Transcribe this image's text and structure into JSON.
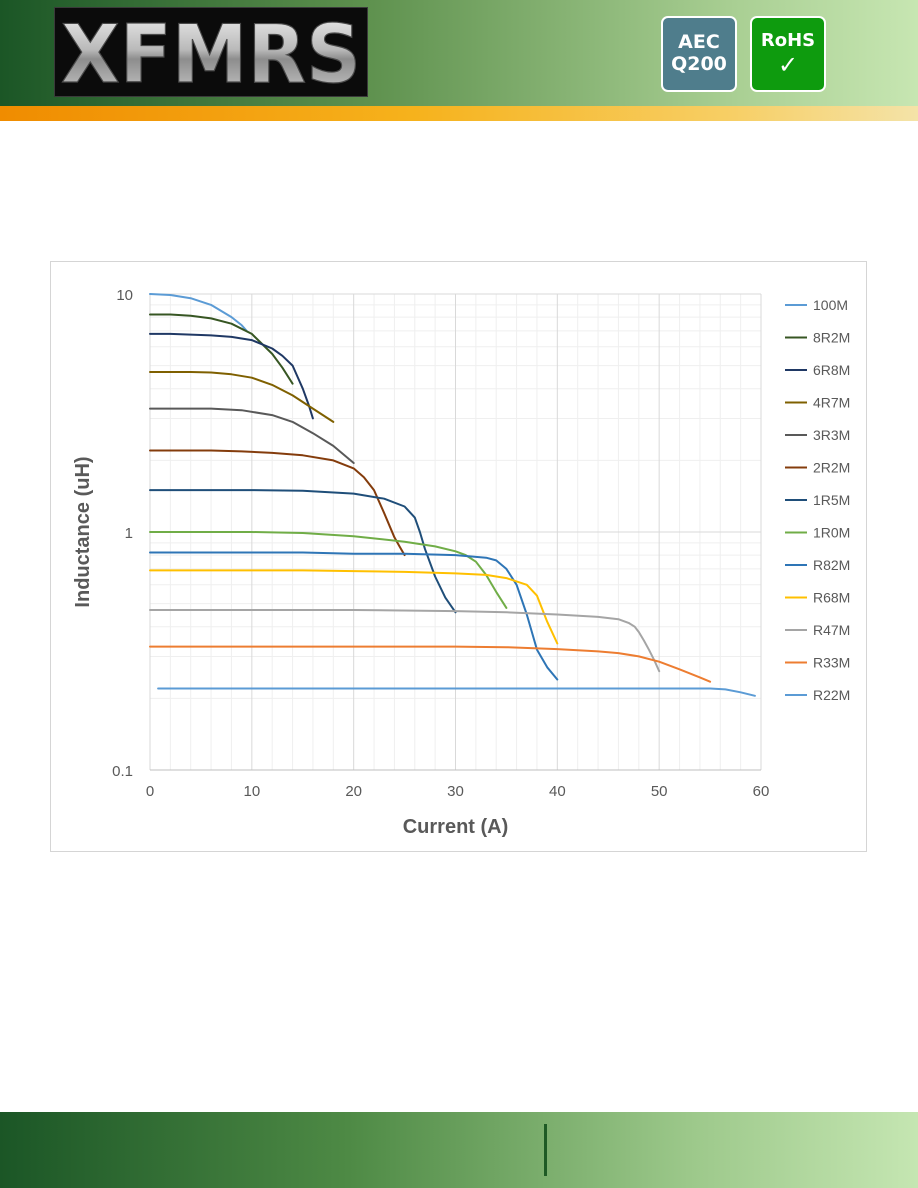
{
  "header": {
    "logo_text": "XFMRS",
    "badges": {
      "aec_line1": "AEC",
      "aec_line2": "Q200",
      "rohs_label": "RoHS",
      "rohs_check": "✓"
    }
  },
  "colors": {
    "header_dark": "#1b5626",
    "header_light": "#c7e6b2",
    "accent_orange": "#f08c00",
    "aec_badge": "#4f7d8c",
    "rohs_badge": "#0e9b0e"
  },
  "chart_data": {
    "type": "line",
    "xlabel": "Current (A)",
    "ylabel": "Inductance (uH)",
    "xlim": [
      0,
      60
    ],
    "ylim": [
      0.1,
      10
    ],
    "yscale": "log",
    "x_ticks": [
      "0",
      "10",
      "20",
      "30",
      "40",
      "50",
      "60"
    ],
    "y_ticks": [
      "0.1",
      "1",
      "10"
    ],
    "grid": true,
    "legend_position": "right",
    "series": [
      {
        "name": "100M",
        "color": "#5b9bd5",
        "x": [
          0,
          2,
          4,
          6,
          8,
          9,
          9.5
        ],
        "y": [
          10,
          9.9,
          9.6,
          9.0,
          8.0,
          7.4,
          7.0
        ]
      },
      {
        "name": "8R2M",
        "color": "#375623",
        "x": [
          0,
          2,
          4,
          6,
          8,
          10,
          12,
          13,
          14
        ],
        "y": [
          8.2,
          8.2,
          8.1,
          7.9,
          7.5,
          6.8,
          5.6,
          4.9,
          4.2
        ]
      },
      {
        "name": "6R8M",
        "color": "#1f3864",
        "x": [
          0,
          2,
          4,
          6,
          8,
          10,
          12,
          13,
          14,
          15,
          15.6,
          16
        ],
        "y": [
          6.8,
          6.8,
          6.75,
          6.7,
          6.6,
          6.4,
          5.9,
          5.5,
          5.0,
          4.0,
          3.4,
          3.0
        ]
      },
      {
        "name": "4R7M",
        "color": "#7f6000",
        "x": [
          0,
          2,
          4,
          6,
          8,
          10,
          12,
          14,
          16,
          18
        ],
        "y": [
          4.7,
          4.7,
          4.7,
          4.68,
          4.6,
          4.45,
          4.15,
          3.75,
          3.3,
          2.9
        ]
      },
      {
        "name": "3R3M",
        "color": "#595959",
        "x": [
          0,
          3,
          6,
          9,
          12,
          14,
          16,
          18,
          20
        ],
        "y": [
          3.3,
          3.3,
          3.3,
          3.25,
          3.1,
          2.9,
          2.6,
          2.3,
          1.95
        ]
      },
      {
        "name": "2R2M",
        "color": "#843c0c",
        "x": [
          0,
          3,
          6,
          9,
          12,
          15,
          18,
          20,
          21,
          22,
          23,
          24,
          24.5,
          25
        ],
        "y": [
          2.2,
          2.2,
          2.2,
          2.18,
          2.15,
          2.1,
          2.0,
          1.85,
          1.7,
          1.5,
          1.2,
          0.95,
          0.87,
          0.8
        ]
      },
      {
        "name": "1R5M",
        "color": "#1f4e79",
        "x": [
          0,
          5,
          10,
          15,
          20,
          23,
          25,
          26,
          26.5,
          27,
          28,
          29,
          30
        ],
        "y": [
          1.5,
          1.5,
          1.5,
          1.49,
          1.45,
          1.38,
          1.28,
          1.15,
          1.0,
          0.85,
          0.65,
          0.53,
          0.46
        ]
      },
      {
        "name": "1R0M",
        "color": "#70ad47",
        "x": [
          0,
          5,
          10,
          15,
          20,
          25,
          28,
          30,
          31,
          32,
          33,
          34,
          35
        ],
        "y": [
          1.0,
          1.0,
          1.0,
          0.99,
          0.96,
          0.91,
          0.87,
          0.83,
          0.8,
          0.75,
          0.66,
          0.56,
          0.48
        ]
      },
      {
        "name": "R82M",
        "color": "#2e75b6",
        "x": [
          0,
          5,
          10,
          15,
          20,
          25,
          30,
          33,
          34,
          35,
          36,
          37,
          38,
          39,
          40
        ],
        "y": [
          0.82,
          0.82,
          0.82,
          0.82,
          0.81,
          0.81,
          0.8,
          0.78,
          0.76,
          0.7,
          0.6,
          0.45,
          0.32,
          0.27,
          0.24
        ]
      },
      {
        "name": "R68M",
        "color": "#ffc000",
        "x": [
          0,
          5,
          10,
          15,
          20,
          25,
          30,
          33,
          35,
          37,
          38,
          39,
          40
        ],
        "y": [
          0.69,
          0.69,
          0.69,
          0.69,
          0.685,
          0.68,
          0.67,
          0.66,
          0.64,
          0.6,
          0.54,
          0.42,
          0.34
        ]
      },
      {
        "name": "R47M",
        "color": "#a5a5a5",
        "x": [
          0,
          10,
          20,
          30,
          35,
          40,
          44,
          46,
          47,
          47.6,
          48,
          48.5,
          49,
          49.5,
          50
        ],
        "y": [
          0.47,
          0.47,
          0.47,
          0.465,
          0.46,
          0.45,
          0.44,
          0.43,
          0.415,
          0.4,
          0.38,
          0.35,
          0.32,
          0.29,
          0.26
        ]
      },
      {
        "name": "R33M",
        "color": "#ed7d31",
        "x": [
          0,
          10,
          20,
          30,
          35,
          40,
          44,
          46,
          48,
          50,
          52,
          54,
          55
        ],
        "y": [
          0.33,
          0.33,
          0.33,
          0.33,
          0.328,
          0.322,
          0.315,
          0.31,
          0.3,
          0.285,
          0.265,
          0.245,
          0.235
        ]
      },
      {
        "name": "R22M",
        "color": "#5b9bd5",
        "x": [
          0.8,
          10,
          20,
          30,
          40,
          50,
          55,
          56.5,
          58,
          59.4
        ],
        "y": [
          0.22,
          0.22,
          0.22,
          0.22,
          0.22,
          0.22,
          0.22,
          0.218,
          0.212,
          0.205
        ]
      }
    ]
  }
}
